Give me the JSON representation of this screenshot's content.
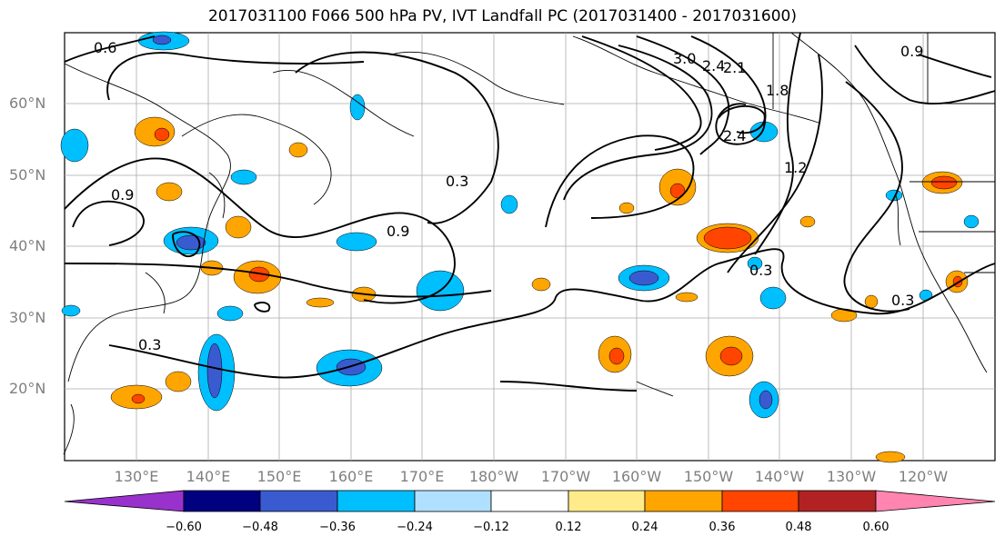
{
  "title": "2017031100 F066 500 hPa PV, IVT Landfall PC (2017031400 - 2017031600)",
  "map": {
    "lat_labels": [
      "60°N",
      "50°N",
      "40°N",
      "30°N",
      "20°N"
    ],
    "lon_labels": [
      "130°E",
      "140°E",
      "150°E",
      "160°E",
      "170°E",
      "180°W",
      "170°W",
      "160°W",
      "150°W",
      "140°W",
      "130°W",
      "120°W"
    ],
    "contour_labels": [
      "0.6",
      "0.3",
      "0.9",
      "3.0",
      "2.4",
      "2.1",
      "1.8",
      "1.2",
      "0.9",
      "0.3",
      "0.3",
      "0.9",
      "0.3",
      "2.4"
    ],
    "land_color": "#000000",
    "contour_color": "#000000"
  },
  "colorbar": {
    "ticks": [
      "−0.60",
      "−0.48",
      "−0.36",
      "−0.24",
      "−0.12",
      "0.12",
      "0.24",
      "0.36",
      "0.48",
      "0.60"
    ],
    "colors": [
      "#9932cc",
      "#000080",
      "#3a5bd0",
      "#00bfff",
      "#b0e0ff",
      "#ffffff",
      "#ffeb8a",
      "#ffa500",
      "#ff4500",
      "#b22222",
      "#ff85b0"
    ]
  }
}
